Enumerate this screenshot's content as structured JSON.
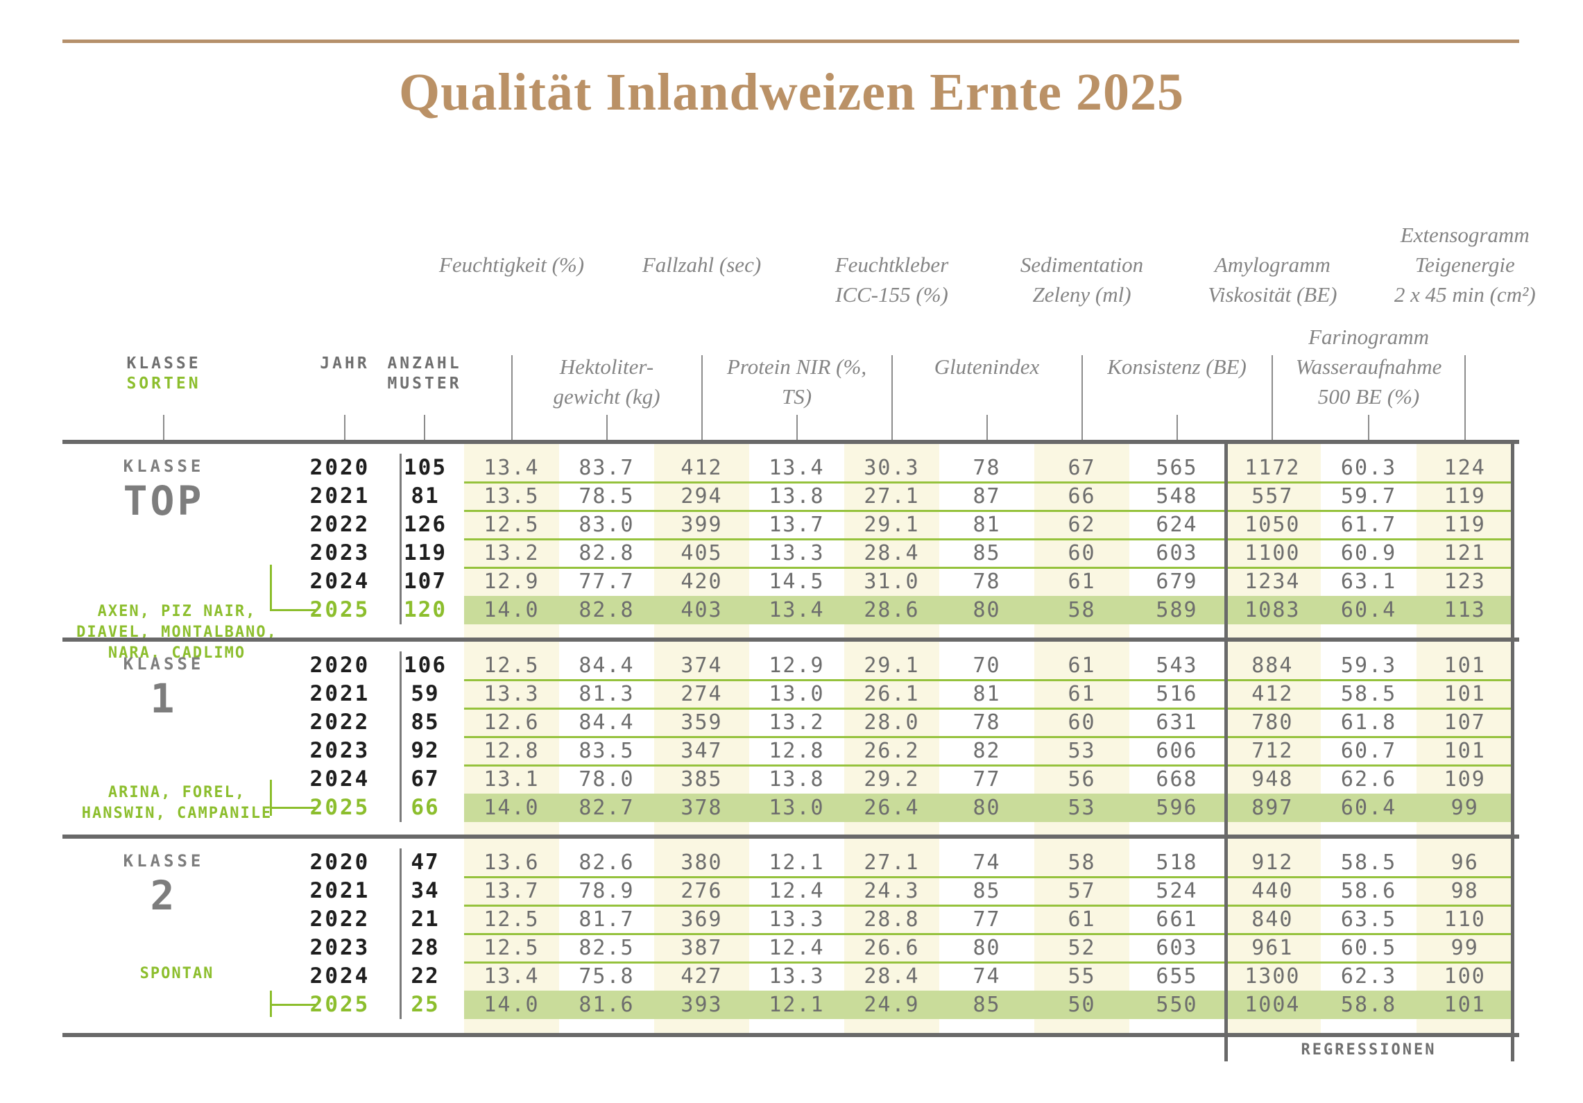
{
  "title": "Qualität Inlandweizen Ernte 2025",
  "left_header": {
    "klasse": "KLASSE",
    "sorten": "SORTEN",
    "jahr": "JAHR",
    "anzahl": "ANZAHL",
    "muster": "MUSTER"
  },
  "column_headers_top": [
    {
      "col": 0,
      "lines": [
        "Feuchtigkeit (%)"
      ]
    },
    {
      "col": 2,
      "lines": [
        "Fallzahl (sec)"
      ]
    },
    {
      "col": 4,
      "lines": [
        "Feuchtkleber",
        "ICC-155 (%)"
      ]
    },
    {
      "col": 6,
      "lines": [
        "Sedimentation",
        "Zeleny (ml)"
      ]
    },
    {
      "col": 8,
      "lines": [
        "Amylogramm",
        "Viskosität (BE)"
      ]
    },
    {
      "col": 10,
      "lines": [
        "Extensogramm",
        "Teigenergie",
        "2 x 45 min (cm²)"
      ]
    }
  ],
  "column_headers_mid": [
    {
      "col": 1,
      "lines": [
        "Hektoliter-",
        "gewicht (kg)"
      ]
    },
    {
      "col": 3,
      "lines": [
        "Protein NIR (%,",
        "TS)"
      ]
    },
    {
      "col": 5,
      "lines": [
        "Glutenindex"
      ]
    },
    {
      "col": 7,
      "lines": [
        "Konsistenz (BE)"
      ]
    },
    {
      "col": 9,
      "lines": [
        "Farinogramm",
        "Wasseraufnahme",
        "500 BE (%)"
      ]
    }
  ],
  "sections": [
    {
      "klasse_label": "KLASSE",
      "name": "TOP",
      "varieties": [
        "AXEN, PIZ NAIR,",
        "DIAVEL, MONTALBANO,",
        "NARA, CADLIMO"
      ],
      "rows": [
        {
          "year": "2020",
          "count": "105",
          "highlight": false,
          "values": [
            "13.4",
            "83.7",
            "412",
            "13.4",
            "30.3",
            "78",
            "67",
            "565",
            "1172",
            "60.3",
            "124"
          ]
        },
        {
          "year": "2021",
          "count": "81",
          "highlight": false,
          "values": [
            "13.5",
            "78.5",
            "294",
            "13.8",
            "27.1",
            "87",
            "66",
            "548",
            "557",
            "59.7",
            "119"
          ]
        },
        {
          "year": "2022",
          "count": "126",
          "highlight": false,
          "values": [
            "12.5",
            "83.0",
            "399",
            "13.7",
            "29.1",
            "81",
            "62",
            "624",
            "1050",
            "61.7",
            "119"
          ]
        },
        {
          "year": "2023",
          "count": "119",
          "highlight": false,
          "values": [
            "13.2",
            "82.8",
            "405",
            "13.3",
            "28.4",
            "85",
            "60",
            "603",
            "1100",
            "60.9",
            "121"
          ]
        },
        {
          "year": "2024",
          "count": "107",
          "highlight": false,
          "values": [
            "12.9",
            "77.7",
            "420",
            "14.5",
            "31.0",
            "78",
            "61",
            "679",
            "1234",
            "63.1",
            "123"
          ]
        },
        {
          "year": "2025",
          "count": "120",
          "highlight": true,
          "values": [
            "14.0",
            "82.8",
            "403",
            "13.4",
            "28.6",
            "80",
            "58",
            "589",
            "1083",
            "60.4",
            "113"
          ]
        }
      ]
    },
    {
      "klasse_label": "KLASSE",
      "name": "1",
      "varieties": [
        "ARINA, FOREL,",
        "HANSWIN, CAMPANILE"
      ],
      "rows": [
        {
          "year": "2020",
          "count": "106",
          "highlight": false,
          "values": [
            "12.5",
            "84.4",
            "374",
            "12.9",
            "29.1",
            "70",
            "61",
            "543",
            "884",
            "59.3",
            "101"
          ]
        },
        {
          "year": "2021",
          "count": "59",
          "highlight": false,
          "values": [
            "13.3",
            "81.3",
            "274",
            "13.0",
            "26.1",
            "81",
            "61",
            "516",
            "412",
            "58.5",
            "101"
          ]
        },
        {
          "year": "2022",
          "count": "85",
          "highlight": false,
          "values": [
            "12.6",
            "84.4",
            "359",
            "13.2",
            "28.0",
            "78",
            "60",
            "631",
            "780",
            "61.8",
            "107"
          ]
        },
        {
          "year": "2023",
          "count": "92",
          "highlight": false,
          "values": [
            "12.8",
            "83.5",
            "347",
            "12.8",
            "26.2",
            "82",
            "53",
            "606",
            "712",
            "60.7",
            "101"
          ]
        },
        {
          "year": "2024",
          "count": "67",
          "highlight": false,
          "values": [
            "13.1",
            "78.0",
            "385",
            "13.8",
            "29.2",
            "77",
            "56",
            "668",
            "948",
            "62.6",
            "109"
          ]
        },
        {
          "year": "2025",
          "count": "66",
          "highlight": true,
          "values": [
            "14.0",
            "82.7",
            "378",
            "13.0",
            "26.4",
            "80",
            "53",
            "596",
            "897",
            "60.4",
            "99"
          ]
        }
      ]
    },
    {
      "klasse_label": "KLASSE",
      "name": "2",
      "varieties": [
        "SPONTAN"
      ],
      "rows": [
        {
          "year": "2020",
          "count": "47",
          "highlight": false,
          "values": [
            "13.6",
            "82.6",
            "380",
            "12.1",
            "27.1",
            "74",
            "58",
            "518",
            "912",
            "58.5",
            "96"
          ]
        },
        {
          "year": "2021",
          "count": "34",
          "highlight": false,
          "values": [
            "13.7",
            "78.9",
            "276",
            "12.4",
            "24.3",
            "85",
            "57",
            "524",
            "440",
            "58.6",
            "98"
          ]
        },
        {
          "year": "2022",
          "count": "21",
          "highlight": false,
          "values": [
            "12.5",
            "81.7",
            "369",
            "13.3",
            "28.8",
            "77",
            "61",
            "661",
            "840",
            "63.5",
            "110"
          ]
        },
        {
          "year": "2023",
          "count": "28",
          "highlight": false,
          "values": [
            "12.5",
            "82.5",
            "387",
            "12.4",
            "26.6",
            "80",
            "52",
            "603",
            "961",
            "60.5",
            "99"
          ]
        },
        {
          "year": "2024",
          "count": "22",
          "highlight": false,
          "values": [
            "13.4",
            "75.8",
            "427",
            "13.3",
            "28.4",
            "74",
            "55",
            "655",
            "1300",
            "62.3",
            "100"
          ]
        },
        {
          "year": "2025",
          "count": "25",
          "highlight": true,
          "values": [
            "14.0",
            "81.6",
            "393",
            "12.1",
            "24.9",
            "85",
            "50",
            "550",
            "1004",
            "58.8",
            "101"
          ]
        }
      ]
    }
  ],
  "footer": {
    "regressionen": "REGRESSIONEN"
  },
  "colors": {
    "title_brown": "#ba9166",
    "rule_brown": "#b5906b",
    "accent_green": "#8cbe2d",
    "separator_green": "#95c23c",
    "highlight_row": "#c9dc9a",
    "cream_column": "#faf7e2",
    "border_gray": "#696969",
    "value_gray": "#6d6d6d",
    "header_gray": "#848484",
    "year_black": "#1e1e1e"
  }
}
